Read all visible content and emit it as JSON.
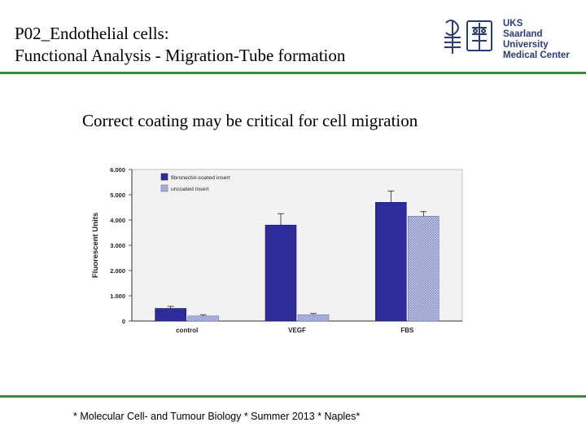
{
  "header": {
    "title_line1": "P02_Endothelial cells:",
    "title_line2": "Functional Analysis - Migration-Tube formation"
  },
  "logo": {
    "line1": "UKS",
    "line2": "Saarland University",
    "line3": "Medical Center"
  },
  "subtitle": "Correct coating may be critical for cell migration",
  "footer": "* Molecular Cell- and Tumour Biology * Summer 2013 * Naples*",
  "colors": {
    "accent_green": "#3e8a3e",
    "fibronectin": "#2e2c9a",
    "uncoated": "#aab0d8"
  },
  "chart_data": {
    "type": "bar",
    "categories": [
      "control",
      "VEGF",
      "FBS"
    ],
    "series": [
      {
        "name": "fibronectin-coated insert",
        "values": [
          500,
          3800,
          4700
        ],
        "errors": [
          80,
          450,
          450
        ]
      },
      {
        "name": "uncoated insert",
        "values": [
          200,
          250,
          4150
        ],
        "errors": [
          50,
          50,
          180
        ]
      }
    ],
    "yticks": [
      "0",
      "1.000",
      "2.000",
      "3.000",
      "4.000",
      "5.000",
      "6.000"
    ],
    "ylabel": "Fluorescent Units",
    "ylim": [
      0,
      6000
    ],
    "legend_position": "top-left"
  }
}
